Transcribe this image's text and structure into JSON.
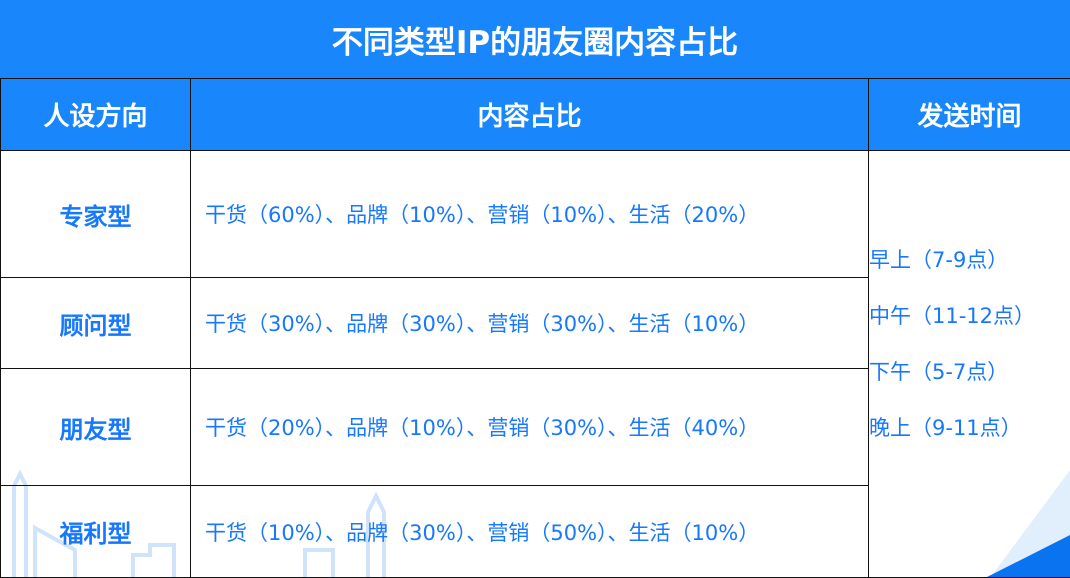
{
  "title": "不同类型IP的朋友圈内容占比",
  "headers": {
    "type": "人设方向",
    "content": "内容占比",
    "time": "发送时间"
  },
  "rows": [
    {
      "type": "专家型",
      "content": "干货（60%）、品牌（10%）、营销（10%）、生活（20%）"
    },
    {
      "type": "顾问型",
      "content": "干货（30%）、品牌（30%）、营销（30%）、生活（10%）"
    },
    {
      "type": "朋友型",
      "content": "干货（20%）、品牌（10%）、营销（30%）、生活（40%）"
    },
    {
      "type": "福利型",
      "content": "干货（10%）、品牌（30%）、营销（50%）、生活（10%）"
    }
  ],
  "times": [
    "早上（7-9点）",
    "中午（11-12点）",
    "下午（5-7点）",
    "晚上（9-11点）"
  ],
  "colors": {
    "accent": "#1a86fb",
    "text": "#1677ff"
  }
}
